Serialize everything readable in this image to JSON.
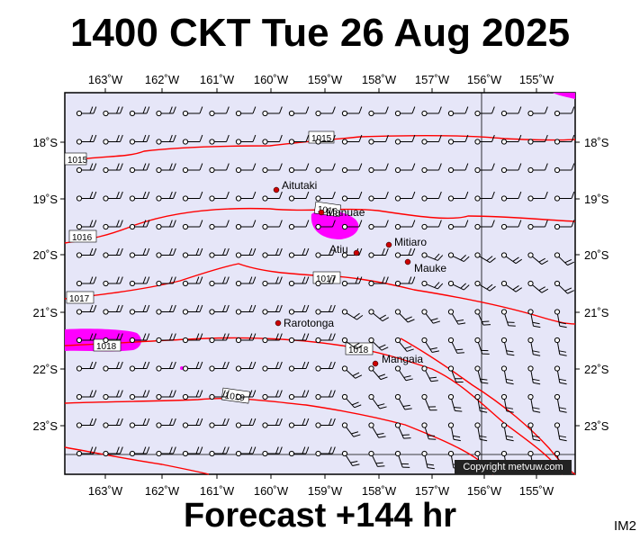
{
  "title": "1400 CKT Tue 26 Aug 2025",
  "footer": "Forecast +144 hr",
  "corner_label": "IM2",
  "copyright": "Copyright metvuw.com",
  "lon_labels": [
    "163˚W",
    "162˚W",
    "161˚W",
    "160˚W",
    "159˚W",
    "158˚W",
    "157˚W",
    "156˚W",
    "155˚W"
  ],
  "lat_labels": [
    "18˚S",
    "19˚S",
    "20˚S",
    "21˚S",
    "22˚S",
    "23˚S"
  ],
  "places": [
    {
      "name": "Aitutaki"
    },
    {
      "name": "Manuae"
    },
    {
      "name": "Atiu"
    },
    {
      "name": "Mitiaro"
    },
    {
      "name": "Mauke"
    },
    {
      "name": "Rarotonga"
    },
    {
      "name": "Mangaia"
    }
  ],
  "isobar_labels": [
    "1015",
    "1015",
    "1016",
    "1016",
    "1017",
    "1017",
    "1018",
    "1018",
    "1019"
  ],
  "colors": {
    "ocean": "#e6e6f8",
    "isobar": "#ff0000",
    "rain": "#ff00ff",
    "place_dot": "#cc0000"
  }
}
